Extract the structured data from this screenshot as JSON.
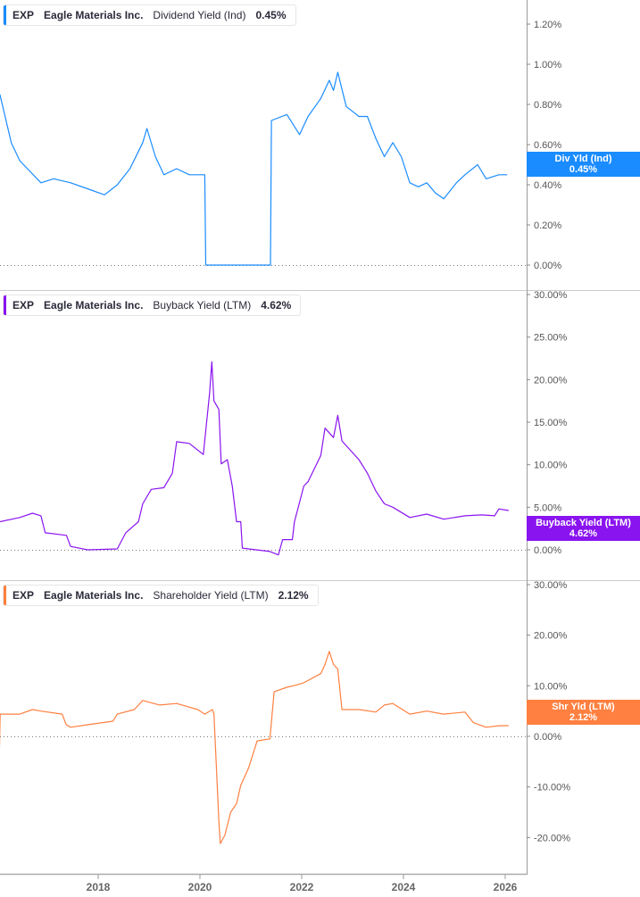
{
  "chart_data": [
    {
      "type": "line",
      "ticker": "EXP",
      "company": "Eagle Materials Inc.",
      "metric": "Dividend Yield (Ind)",
      "current": "0.45%",
      "badge": {
        "label": "Div Yld (Ind)",
        "value": "0.45%"
      },
      "color": "#1a8cff",
      "yticks": [
        "0.00%",
        "0.20%",
        "0.40%",
        "0.60%",
        "0.80%",
        "1.00%",
        "1.20%"
      ],
      "ytick_values": [
        0,
        0.2,
        0.4,
        0.6,
        0.8,
        1.0,
        1.2
      ],
      "ylim": [
        0,
        1.3
      ],
      "points": [
        [
          "2016-01-26",
          0.85
        ],
        [
          "2016-04",
          0.61
        ],
        [
          "2016-06",
          0.52
        ],
        [
          "2016-11",
          0.41
        ],
        [
          "2017-02",
          0.43
        ],
        [
          "2017-06",
          0.41
        ],
        [
          "2017-10",
          0.38
        ],
        [
          "2018-02",
          0.35
        ],
        [
          "2018-05",
          0.4
        ],
        [
          "2018-08",
          0.48
        ],
        [
          "2018-11",
          0.61
        ],
        [
          "2018-12",
          0.68
        ],
        [
          "2019-02",
          0.54
        ],
        [
          "2019-04",
          0.45
        ],
        [
          "2019-07",
          0.48
        ],
        [
          "2019-10",
          0.45
        ],
        [
          "2020-02-05",
          0.45
        ],
        [
          "2020-02-12",
          0
        ],
        [
          "2021-05-20",
          0
        ],
        [
          "2021-05-27",
          0.72
        ],
        [
          "2021-09",
          0.75
        ],
        [
          "2021-12",
          0.65
        ],
        [
          "2022-02",
          0.74
        ],
        [
          "2022-05",
          0.83
        ],
        [
          "2022-07",
          0.92
        ],
        [
          "2022-08",
          0.87
        ],
        [
          "2022-09",
          0.96
        ],
        [
          "2022-11",
          0.79
        ],
        [
          "2023-02",
          0.74
        ],
        [
          "2023-04",
          0.74
        ],
        [
          "2023-06",
          0.63
        ],
        [
          "2023-08",
          0.54
        ],
        [
          "2023-10",
          0.61
        ],
        [
          "2023-12",
          0.54
        ],
        [
          "2024-02",
          0.41
        ],
        [
          "2024-04",
          0.39
        ],
        [
          "2024-06",
          0.41
        ],
        [
          "2024-08",
          0.36
        ],
        [
          "2024-10",
          0.33
        ],
        [
          "2025-01",
          0.41
        ],
        [
          "2025-03",
          0.45
        ],
        [
          "2025-06",
          0.5
        ],
        [
          "2025-08",
          0.43
        ],
        [
          "2025-11",
          0.45
        ],
        [
          "2026-01-15",
          0.45
        ]
      ]
    },
    {
      "type": "line",
      "ticker": "EXP",
      "company": "Eagle Materials Inc.",
      "metric": "Buyback Yield (LTM)",
      "current": "4.62%",
      "badge": {
        "label": "Buyback Yield (LTM)",
        "value": "4.62%"
      },
      "color": "#8a14f0",
      "yticks": [
        "0.00%",
        "5.00%",
        "10.00%",
        "15.00%",
        "20.00%",
        "25.00%",
        "30.00%"
      ],
      "ytick_values": [
        0,
        5,
        10,
        15,
        20,
        25,
        30
      ],
      "ylim": [
        -1,
        30
      ],
      "points": [
        [
          "2016-01-26",
          3.3
        ],
        [
          "2016-06",
          3.8
        ],
        [
          "2016-09",
          4.3
        ],
        [
          "2016-11",
          4.0
        ],
        [
          "2016-12",
          2.0
        ],
        [
          "2017-05",
          1.7
        ],
        [
          "2017-06",
          0.4
        ],
        [
          "2017-10",
          0
        ],
        [
          "2018-05",
          0.1
        ],
        [
          "2018-07",
          2.0
        ],
        [
          "2018-10",
          3.3
        ],
        [
          "2018-11",
          5.4
        ],
        [
          "2019-01",
          7.1
        ],
        [
          "2019-04",
          7.3
        ],
        [
          "2019-06",
          9.0
        ],
        [
          "2019-07",
          12.7
        ],
        [
          "2019-10",
          12.5
        ],
        [
          "2020-01-25",
          11.2
        ],
        [
          "2020-03-10",
          18.5
        ],
        [
          "2020-03-25",
          22.1
        ],
        [
          "2020-04-10",
          17.5
        ],
        [
          "2020-05-15",
          16.5
        ],
        [
          "2020-06-01",
          10.1
        ],
        [
          "2020-07-15",
          10.6
        ],
        [
          "2020-08-20",
          7.5
        ],
        [
          "2020-09-20",
          3.3
        ],
        [
          "2020-10-20",
          3.3
        ],
        [
          "2020-11-01",
          0.2
        ],
        [
          "2021-05",
          -0.2
        ],
        [
          "2021-07",
          -0.6
        ],
        [
          "2021-08",
          1.2
        ],
        [
          "2021-10-25",
          1.2
        ],
        [
          "2021-11-10",
          3.3
        ],
        [
          "2022-01",
          7.5
        ],
        [
          "2022-02",
          8.0
        ],
        [
          "2022-05",
          11.1
        ],
        [
          "2022-06",
          14.3
        ],
        [
          "2022-08",
          13.2
        ],
        [
          "2022-09",
          15.8
        ],
        [
          "2022-10",
          12.8
        ],
        [
          "2023-02",
          10.6
        ],
        [
          "2023-04",
          9.0
        ],
        [
          "2023-06",
          6.9
        ],
        [
          "2023-08",
          5.4
        ],
        [
          "2023-10",
          5.0
        ],
        [
          "2024-02",
          3.8
        ],
        [
          "2024-06",
          4.2
        ],
        [
          "2024-10",
          3.6
        ],
        [
          "2025-03",
          4.0
        ],
        [
          "2025-07",
          4.1
        ],
        [
          "2025-10",
          4.0
        ],
        [
          "2025-11",
          4.8
        ],
        [
          "2026-01-25",
          4.62
        ]
      ]
    },
    {
      "type": "line",
      "ticker": "EXP",
      "company": "Eagle Materials Inc.",
      "metric": "Shareholder Yield (LTM)",
      "current": "2.12%",
      "badge": {
        "label": "Shr Yld (LTM)",
        "value": "2.12%"
      },
      "color": "#ff8040",
      "yticks": [
        "-20.00%",
        "-10.00%",
        "0.00%",
        "10.00%",
        "20.00%",
        "30.00%"
      ],
      "ytick_values": [
        -20,
        -10,
        0,
        10,
        20,
        30
      ],
      "ylim": [
        -22,
        30
      ],
      "points": [
        [
          "2016-01-20",
          -6.2
        ],
        [
          "2016-01-28",
          4.4
        ],
        [
          "2016-06",
          4.4
        ],
        [
          "2016-09",
          5.3
        ],
        [
          "2016-11",
          5.0
        ],
        [
          "2017-04",
          4.4
        ],
        [
          "2017-05-15",
          2.3
        ],
        [
          "2017-06",
          1.8
        ],
        [
          "2017-10",
          2.3
        ],
        [
          "2018-04",
          3.0
        ],
        [
          "2018-05",
          4.4
        ],
        [
          "2018-09",
          5.3
        ],
        [
          "2018-11",
          7.1
        ],
        [
          "2019-03",
          6.2
        ],
        [
          "2019-07",
          6.5
        ],
        [
          "2019-12",
          5.3
        ],
        [
          "2020-02-05",
          4.4
        ],
        [
          "2020-03-30",
          5.3
        ],
        [
          "2020-04-10",
          4.4
        ],
        [
          "2020-05-15",
          -16.8
        ],
        [
          "2020-05-25",
          -21.2
        ],
        [
          "2020-06-28",
          -19.5
        ],
        [
          "2020-08-08",
          -15.0
        ],
        [
          "2020-09-20",
          -13.3
        ],
        [
          "2020-10-20",
          -9.7
        ],
        [
          "2020-12",
          -6.2
        ],
        [
          "2021-02",
          -0.9
        ],
        [
          "2021-05",
          -0.5
        ],
        [
          "2021-06",
          8.8
        ],
        [
          "2021-09",
          9.7
        ],
        [
          "2021-11",
          10.1
        ],
        [
          "2022-01",
          10.6
        ],
        [
          "2022-05",
          12.4
        ],
        [
          "2022-06",
          14.2
        ],
        [
          "2022-07",
          16.8
        ],
        [
          "2022-08",
          14.2
        ],
        [
          "2022-09",
          13.3
        ],
        [
          "2022-10",
          5.3
        ],
        [
          "2023-02",
          5.3
        ],
        [
          "2023-06",
          4.8
        ],
        [
          "2023-08",
          6.2
        ],
        [
          "2023-10",
          6.5
        ],
        [
          "2024-02",
          4.4
        ],
        [
          "2024-06",
          5.0
        ],
        [
          "2024-10",
          4.4
        ],
        [
          "2025-03",
          4.8
        ],
        [
          "2025-05",
          2.7
        ],
        [
          "2025-08",
          1.8
        ],
        [
          "2025-11",
          2.1
        ],
        [
          "2026-01-25",
          2.12
        ]
      ]
    }
  ],
  "x_axis": {
    "ticks": [
      "2018",
      "2020",
      "2022",
      "2024",
      "2026"
    ],
    "tick_values": [
      2018,
      2020,
      2022,
      2024,
      2026
    ]
  }
}
